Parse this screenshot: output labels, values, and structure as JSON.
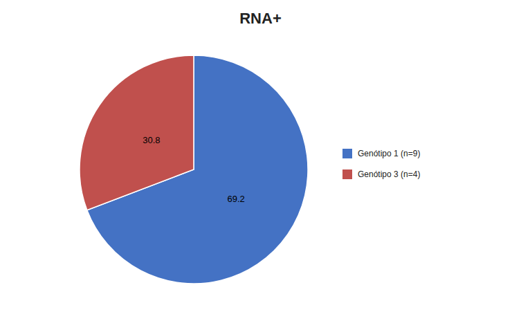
{
  "chart_data": {
    "type": "pie",
    "title": "RNA+",
    "categories": [
      "Genótipo 1 (n=9)",
      "Genótipo 3 (n=4)"
    ],
    "values": [
      69.2,
      30.8
    ],
    "colors": [
      "#4472C4",
      "#C0504D"
    ],
    "data_labels": true,
    "legend": "right"
  }
}
